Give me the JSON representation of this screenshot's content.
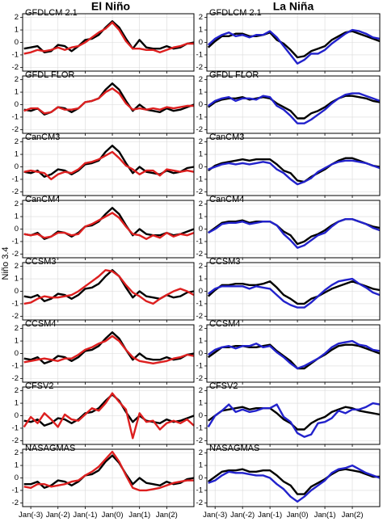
{
  "figure": {
    "col_titles": [
      "El Niño",
      "La Niña"
    ],
    "ylabel": "Niño 3.4"
  },
  "chart_data": {
    "type": "line",
    "x_labels": [
      "Jan(-3)",
      "Jan(-2)",
      "Jan(-1)",
      "Jan(0)",
      "Jan(1)",
      "Jan(2)"
    ],
    "x_range": [
      -3.3,
      3.0
    ],
    "y_ticks": [
      -2,
      -1,
      0,
      1,
      2
    ],
    "ylim": [
      -2.3,
      2.3
    ],
    "grid": true,
    "colors": {
      "obs": "#000000",
      "el_nino": "#dd1f1f",
      "la_nina": "#2222cc"
    },
    "x": [
      -3.25,
      -3.0,
      -2.75,
      -2.5,
      -2.25,
      -2.0,
      -1.75,
      -1.5,
      -1.25,
      -1.0,
      -0.75,
      -0.5,
      -0.25,
      0.0,
      0.25,
      0.5,
      0.75,
      1.0,
      1.25,
      1.5,
      1.75,
      2.0,
      2.25,
      2.5,
      2.75,
      3.0
    ],
    "panels": [
      {
        "model": "GFDLCM 2.1",
        "el_nino": {
          "obs": [
            -0.5,
            -0.4,
            -0.3,
            -0.8,
            -0.7,
            -0.2,
            -0.3,
            -0.7,
            -0.3,
            0.2,
            0.3,
            0.6,
            1.2,
            1.7,
            1.2,
            0.3,
            -0.5,
            0.2,
            -0.4,
            -0.5,
            -0.5,
            -0.3,
            -0.5,
            -0.4,
            -0.1,
            0.0
          ],
          "model": [
            -0.9,
            -0.8,
            -0.6,
            -0.7,
            -0.6,
            -0.4,
            -0.6,
            -0.4,
            -0.3,
            0.0,
            0.4,
            0.8,
            1.1,
            1.6,
            1.0,
            0.1,
            -0.5,
            -0.5,
            -0.6,
            -0.6,
            -0.8,
            -0.6,
            -0.4,
            -0.3,
            -0.1,
            -0.1
          ]
        },
        "la_nina": {
          "obs": [
            -0.4,
            0.1,
            0.5,
            0.5,
            0.7,
            0.7,
            0.5,
            0.5,
            0.6,
            0.8,
            0.2,
            -0.1,
            -0.6,
            -1.2,
            -1.1,
            -0.7,
            -0.5,
            -0.3,
            0.2,
            0.5,
            0.8,
            0.9,
            0.7,
            0.5,
            0.3,
            0.1
          ],
          "model": [
            -0.2,
            0.3,
            0.6,
            0.8,
            0.5,
            0.6,
            0.4,
            0.6,
            0.6,
            0.9,
            0.4,
            -0.3,
            -1.0,
            -1.7,
            -1.4,
            -0.9,
            -0.9,
            -0.6,
            -0.1,
            0.3,
            0.7,
            1.0,
            0.9,
            0.7,
            0.4,
            0.3
          ]
        }
      },
      {
        "model": "GFDL FLOR",
        "el_nino": {
          "obs": [
            -0.4,
            -0.5,
            -0.3,
            -0.8,
            -0.6,
            -0.2,
            -0.3,
            -0.6,
            -0.3,
            0.2,
            0.3,
            0.5,
            1.2,
            1.7,
            1.2,
            0.3,
            -0.5,
            0.0,
            -0.4,
            -0.5,
            -0.6,
            -0.3,
            -0.5,
            -0.4,
            -0.2,
            0.0
          ],
          "model": [
            -0.5,
            -0.3,
            -0.3,
            -0.7,
            -0.6,
            -0.2,
            -0.4,
            -0.4,
            -0.3,
            0.2,
            0.3,
            0.5,
            1.0,
            1.3,
            0.9,
            0.1,
            -0.4,
            -0.3,
            -0.4,
            -0.3,
            -0.4,
            -0.2,
            -0.3,
            -0.2,
            -0.1,
            -0.1
          ]
        },
        "la_nina": {
          "obs": [
            -0.2,
            0.2,
            0.4,
            0.5,
            0.5,
            0.6,
            0.4,
            0.5,
            0.6,
            0.5,
            0.1,
            -0.2,
            -0.5,
            -1.1,
            -1.1,
            -0.7,
            -0.5,
            -0.2,
            0.2,
            0.5,
            0.7,
            0.7,
            0.6,
            0.5,
            0.3,
            0.2
          ],
          "model": [
            -0.1,
            0.3,
            0.5,
            0.6,
            0.3,
            0.5,
            0.5,
            0.4,
            0.7,
            0.6,
            -0.1,
            -0.4,
            -0.9,
            -1.5,
            -1.5,
            -1.2,
            -0.8,
            -0.4,
            0.1,
            0.5,
            0.8,
            0.9,
            0.9,
            0.7,
            0.5,
            0.3
          ]
        }
      },
      {
        "model": "CanCM3",
        "el_nino": {
          "obs": [
            -0.4,
            -0.5,
            -0.3,
            -0.8,
            -0.6,
            -0.2,
            -0.3,
            -0.6,
            -0.3,
            0.2,
            0.3,
            0.5,
            1.2,
            1.7,
            1.2,
            0.3,
            -0.5,
            0.0,
            -0.4,
            -0.5,
            -0.6,
            -0.3,
            -0.5,
            -0.4,
            -0.1,
            0.0
          ],
          "model": [
            -0.4,
            -0.3,
            -0.4,
            -0.5,
            -1.0,
            -0.6,
            -0.4,
            -0.5,
            -0.2,
            0.3,
            0.4,
            0.6,
            0.9,
            1.2,
            0.7,
            0.1,
            -0.2,
            -0.6,
            -0.3,
            -0.3,
            -0.7,
            -0.2,
            -0.3,
            -0.4,
            -0.3,
            -0.4
          ]
        },
        "la_nina": {
          "obs": [
            -0.3,
            0.1,
            0.3,
            0.4,
            0.5,
            0.6,
            0.5,
            0.6,
            0.6,
            0.6,
            0.2,
            -0.3,
            -0.5,
            -1.1,
            -1.2,
            -0.8,
            -0.5,
            -0.2,
            0.2,
            0.5,
            0.7,
            0.7,
            0.5,
            0.3,
            0.1,
            0.0
          ],
          "model": [
            -0.2,
            0.0,
            0.2,
            0.3,
            0.2,
            0.3,
            0.2,
            0.3,
            0.4,
            0.3,
            -0.2,
            -0.5,
            -1.0,
            -1.4,
            -1.2,
            -0.9,
            -0.4,
            -0.1,
            0.2,
            0.4,
            0.5,
            0.5,
            0.4,
            0.3,
            0.1,
            -0.1
          ]
        }
      },
      {
        "model": "CanCM4",
        "el_nino": {
          "obs": [
            -0.4,
            -0.5,
            -0.3,
            -0.8,
            -0.6,
            -0.2,
            -0.3,
            -0.6,
            -0.3,
            0.2,
            0.3,
            0.6,
            1.2,
            1.7,
            1.2,
            0.3,
            -0.5,
            0.0,
            -0.4,
            -0.5,
            -0.5,
            -0.3,
            -0.5,
            -0.4,
            -0.2,
            0.0
          ],
          "model": [
            -0.4,
            -0.5,
            -0.4,
            -0.7,
            -0.6,
            -0.3,
            -0.3,
            -0.5,
            -0.4,
            0.2,
            0.4,
            0.7,
            1.0,
            1.3,
            0.9,
            0.2,
            -0.4,
            -0.5,
            -0.8,
            -0.5,
            -0.7,
            -0.3,
            -0.6,
            -0.4,
            -0.5,
            -0.3
          ]
        },
        "la_nina": {
          "obs": [
            -0.3,
            0.1,
            0.5,
            0.6,
            0.6,
            0.7,
            0.5,
            0.6,
            0.6,
            0.6,
            0.3,
            -0.2,
            -0.5,
            -1.2,
            -1.0,
            -0.6,
            -0.4,
            -0.1,
            0.3,
            0.6,
            0.8,
            0.8,
            0.6,
            0.4,
            0.2,
            0.1
          ],
          "model": [
            -0.3,
            0.0,
            0.4,
            0.5,
            0.5,
            0.6,
            0.4,
            0.5,
            0.6,
            0.6,
            0.3,
            -0.4,
            -0.9,
            -1.5,
            -1.3,
            -0.9,
            -0.5,
            -0.3,
            0.2,
            0.6,
            0.8,
            0.8,
            0.6,
            0.4,
            0.1,
            -0.1
          ]
        }
      },
      {
        "model": "CCSM3",
        "el_nino": {
          "obs": [
            -0.4,
            -0.5,
            -0.3,
            -0.8,
            -0.6,
            -0.2,
            -0.3,
            -0.6,
            -0.3,
            0.2,
            0.3,
            0.6,
            1.2,
            1.7,
            1.2,
            0.3,
            -0.5,
            0.0,
            -0.4,
            -0.5,
            -0.6,
            -0.3,
            -0.5,
            -0.4,
            -0.1,
            0.0
          ],
          "model": [
            -1.0,
            -0.9,
            -0.6,
            -0.4,
            -0.5,
            -0.5,
            -0.4,
            -0.3,
            0.0,
            0.4,
            0.8,
            1.2,
            1.7,
            1.6,
            1.2,
            0.5,
            -0.1,
            -0.4,
            -0.8,
            -1.0,
            -0.6,
            -0.3,
            0.0,
            0.2,
            0.0,
            -0.3
          ]
        },
        "la_nina": {
          "obs": [
            -0.4,
            0.1,
            0.5,
            0.5,
            0.6,
            0.6,
            0.5,
            0.5,
            0.6,
            0.8,
            0.3,
            -0.3,
            -0.6,
            -1.0,
            -1.0,
            -0.6,
            -0.4,
            -0.1,
            0.2,
            0.4,
            0.6,
            0.8,
            0.6,
            0.4,
            0.2,
            0.1
          ],
          "model": [
            -0.2,
            0.2,
            0.4,
            0.4,
            0.4,
            0.4,
            0.2,
            0.4,
            0.3,
            0.2,
            -0.3,
            -0.8,
            -1.1,
            -1.3,
            -1.3,
            -0.9,
            -0.4,
            0.1,
            0.5,
            0.8,
            0.9,
            1.0,
            0.6,
            0.3,
            -0.1,
            -0.3
          ]
        }
      },
      {
        "model": "CCSM4",
        "el_nino": {
          "obs": [
            -0.4,
            -0.5,
            -0.3,
            -0.8,
            -0.6,
            -0.2,
            -0.3,
            -0.6,
            -0.3,
            0.2,
            0.3,
            0.6,
            1.2,
            1.7,
            1.2,
            0.3,
            -0.5,
            0.0,
            -0.4,
            -0.5,
            -0.5,
            -0.3,
            -0.5,
            -0.4,
            -0.1,
            0.0
          ],
          "model": [
            -0.7,
            -0.6,
            -0.5,
            -0.4,
            -0.5,
            -0.6,
            -0.4,
            -0.4,
            -0.1,
            0.3,
            0.5,
            0.8,
            1.0,
            1.4,
            1.0,
            0.3,
            -0.3,
            -0.6,
            -0.7,
            -0.8,
            -0.7,
            -0.6,
            -0.4,
            -0.3,
            -0.1,
            -0.2
          ]
        },
        "la_nina": {
          "obs": [
            -0.3,
            0.1,
            0.5,
            0.5,
            0.6,
            0.6,
            0.5,
            0.5,
            0.6,
            0.7,
            0.2,
            -0.2,
            -0.6,
            -1.2,
            -1.2,
            -0.8,
            -0.4,
            -0.1,
            0.3,
            0.6,
            0.7,
            0.7,
            0.6,
            0.4,
            0.2,
            0.0
          ],
          "model": [
            -0.1,
            0.3,
            0.5,
            0.6,
            0.4,
            0.6,
            0.6,
            0.8,
            0.5,
            0.6,
            0.1,
            -0.3,
            -0.8,
            -1.2,
            -1.0,
            -0.7,
            -0.4,
            0.0,
            0.5,
            0.8,
            0.9,
            1.0,
            0.7,
            0.6,
            0.3,
            0.2
          ]
        }
      },
      {
        "model": "CFSV2",
        "el_nino": {
          "obs": [
            -0.4,
            -0.5,
            -0.3,
            -0.8,
            -0.6,
            -0.2,
            -0.3,
            -0.6,
            -0.3,
            0.2,
            0.3,
            0.6,
            1.2,
            1.7,
            1.2,
            0.3,
            -0.5,
            0.0,
            -0.4,
            -0.5,
            -0.6,
            -0.3,
            -0.5,
            -0.4,
            -0.2,
            0.0
          ],
          "model": [
            -0.9,
            -0.1,
            -0.6,
            0.2,
            -0.3,
            -0.9,
            0.1,
            -0.3,
            -0.4,
            0.1,
            0.6,
            0.4,
            1.0,
            1.8,
            1.1,
            0.5,
            -1.8,
            0.2,
            -0.5,
            -0.4,
            -1.1,
            -0.6,
            -0.4,
            -0.6,
            -0.3,
            -0.8
          ]
        },
        "la_nina": {
          "obs": [
            -0.4,
            0.0,
            0.4,
            0.5,
            0.6,
            0.7,
            0.5,
            0.6,
            0.6,
            0.6,
            0.2,
            -0.3,
            -0.6,
            -1.1,
            -1.1,
            -0.6,
            -0.3,
            -0.1,
            0.3,
            0.5,
            0.7,
            0.6,
            0.4,
            0.3,
            0.2,
            0.1
          ],
          "model": [
            -0.9,
            0.0,
            0.4,
            0.9,
            0.3,
            0.5,
            0.3,
            0.4,
            0.6,
            0.6,
            0.9,
            -0.1,
            -0.5,
            -1.4,
            -1.7,
            -1.5,
            -0.6,
            -0.5,
            -0.2,
            0.4,
            0.2,
            0.5,
            0.5,
            0.7,
            1.0,
            0.9
          ]
        }
      },
      {
        "model": "NASAGMAS",
        "el_nino": {
          "obs": [
            -0.5,
            -0.5,
            -0.3,
            -0.8,
            -0.6,
            -0.2,
            -0.3,
            -0.6,
            -0.3,
            0.2,
            0.3,
            0.6,
            1.3,
            1.8,
            1.2,
            0.3,
            -0.5,
            0.0,
            -0.4,
            -0.5,
            -0.6,
            -0.3,
            -0.5,
            -0.4,
            -0.1,
            0.0
          ],
          "model": [
            -0.7,
            -0.8,
            -0.5,
            -0.5,
            -0.7,
            -0.6,
            -0.5,
            -0.3,
            -0.2,
            0.2,
            0.5,
            0.9,
            1.5,
            2.1,
            1.3,
            0.2,
            -0.8,
            -1.0,
            -1.0,
            -0.9,
            -0.8,
            -0.6,
            -0.4,
            -0.3,
            -0.2,
            -0.2
          ]
        },
        "la_nina": {
          "obs": [
            -0.3,
            0.1,
            0.5,
            0.6,
            0.6,
            0.7,
            0.5,
            0.5,
            0.6,
            0.6,
            0.2,
            -0.3,
            -0.6,
            -1.3,
            -1.3,
            -0.7,
            -0.4,
            -0.1,
            0.3,
            0.6,
            0.7,
            0.6,
            0.5,
            0.3,
            0.1,
            0.1
          ],
          "model": [
            -0.4,
            -0.2,
            0.2,
            0.5,
            0.4,
            0.4,
            0.3,
            0.2,
            0.2,
            0.0,
            -0.5,
            -0.9,
            -1.5,
            -1.9,
            -1.5,
            -1.0,
            -0.6,
            -0.2,
            0.4,
            0.7,
            0.8,
            1.0,
            0.7,
            0.4,
            0.2,
            0.0
          ]
        }
      }
    ]
  }
}
